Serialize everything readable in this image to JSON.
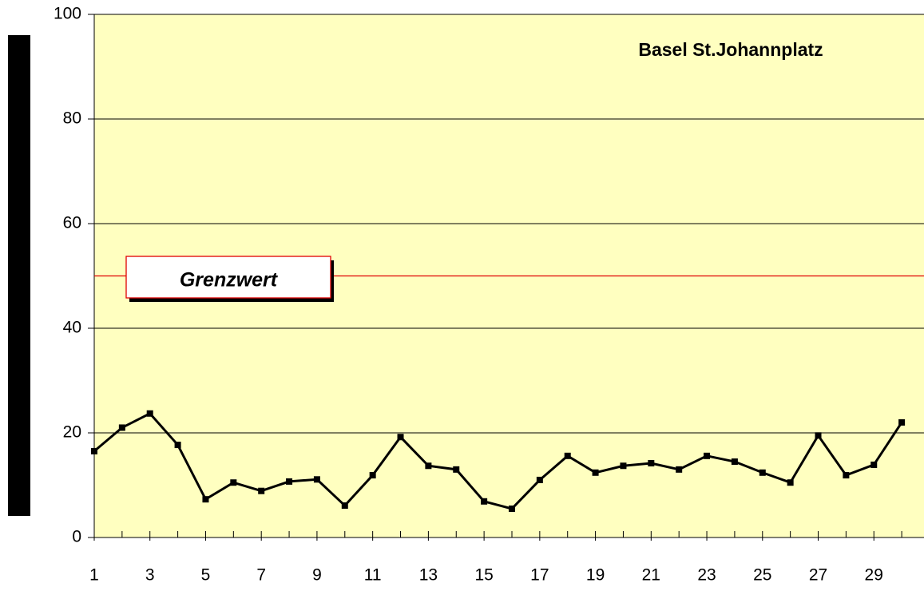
{
  "chart_data": {
    "type": "line",
    "title": "Basel St.Johannplatz",
    "x": [
      1,
      2,
      3,
      4,
      5,
      6,
      7,
      8,
      9,
      10,
      11,
      12,
      13,
      14,
      15,
      16,
      17,
      18,
      19,
      20,
      21,
      22,
      23,
      24,
      25,
      26,
      27,
      28,
      29,
      30
    ],
    "series": [
      {
        "name": "Basel St.Johannplatz",
        "color": "#000000",
        "values": [
          16.5,
          21,
          23.7,
          17.7,
          7.3,
          10.5,
          8.9,
          10.7,
          11.1,
          6.1,
          11.9,
          19.2,
          13.7,
          13,
          6.9,
          5.5,
          11,
          15.6,
          12.4,
          13.7,
          14.2,
          13,
          15.6,
          14.5,
          12.4,
          10.5,
          19.5,
          11.9,
          13.9,
          22
        ]
      }
    ],
    "threshold": {
      "label": "Grenzwert",
      "value": 50,
      "color": "#e00000"
    },
    "xlim": [
      1,
      30.8
    ],
    "xticks": [
      1,
      3,
      5,
      7,
      9,
      11,
      13,
      15,
      17,
      19,
      21,
      23,
      25,
      27,
      29
    ],
    "ylim": [
      0,
      100
    ],
    "yticks": [
      0,
      20,
      40,
      60,
      80,
      100
    ],
    "grid": true,
    "background": "#ffffc0"
  }
}
